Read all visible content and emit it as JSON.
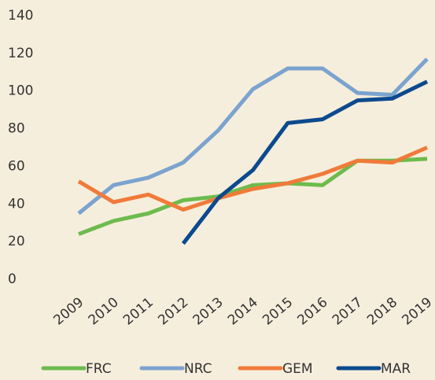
{
  "chart_data": {
    "type": "line",
    "categories": [
      "2009",
      "2010",
      "2011",
      "2012",
      "2013",
      "2014",
      "2015",
      "2016",
      "2017",
      "2018",
      "2019"
    ],
    "series": [
      {
        "name": "FRC",
        "color": "#6dbb4e",
        "values": [
          24,
          31,
          35,
          42,
          44,
          50,
          51,
          50,
          63,
          63,
          64
        ]
      },
      {
        "name": "NRC",
        "color": "#7ba3cf",
        "values": [
          35,
          50,
          54,
          62,
          79,
          101,
          112,
          112,
          99,
          98,
          117
        ]
      },
      {
        "name": "GEM",
        "color": "#f07a3a",
        "values": [
          52,
          41,
          45,
          37,
          43,
          48,
          51,
          56,
          63,
          62,
          70
        ]
      },
      {
        "name": "MAR",
        "color": "#0b4a8e",
        "values": [
          null,
          null,
          null,
          19,
          43,
          58,
          83,
          85,
          95,
          96,
          105
        ]
      }
    ],
    "ylim": [
      0,
      140
    ],
    "yticks": [
      0,
      20,
      40,
      60,
      80,
      100,
      120,
      140
    ],
    "grid": false,
    "legend": "bottom"
  }
}
